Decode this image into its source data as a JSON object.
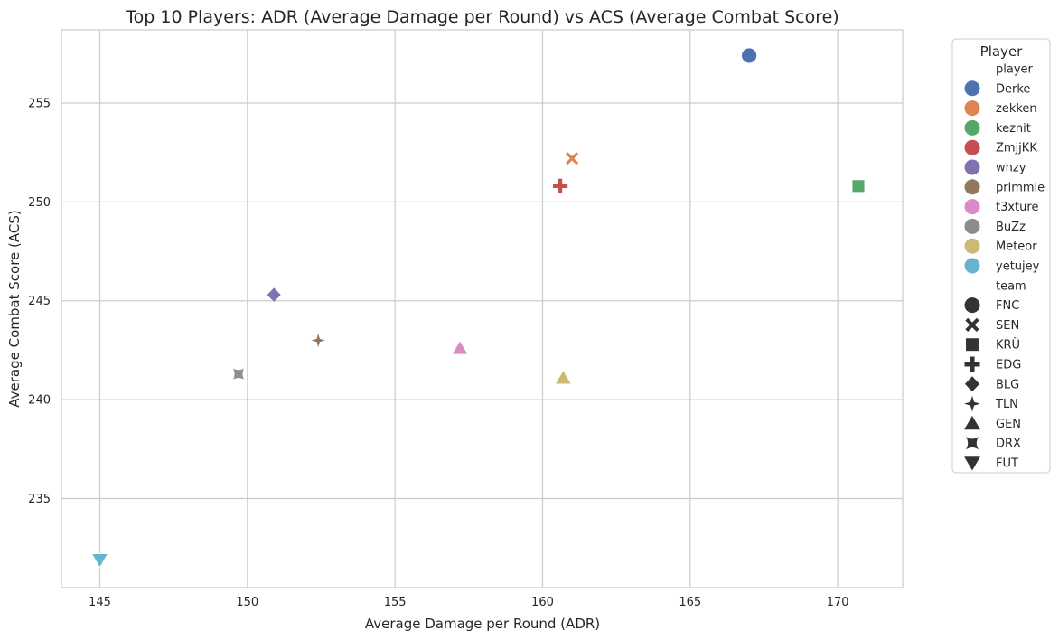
{
  "chart_data": {
    "type": "scatter",
    "title": "Top 10 Players: ADR (Average Damage per Round) vs ACS (Average Combat Score)",
    "xlabel": "Average Damage per Round (ADR)",
    "ylabel": "Average Combat Score (ACS)",
    "xlim": [
      143.7,
      172.2
    ],
    "ylim": [
      230.5,
      258.7
    ],
    "xticks": [
      145,
      150,
      155,
      160,
      165,
      170
    ],
    "yticks": [
      235,
      240,
      245,
      250,
      255
    ],
    "grid": true,
    "legend_position": "outside-right",
    "points": [
      {
        "player": "Derke",
        "team": "FNC",
        "x": 167.0,
        "y": 257.4
      },
      {
        "player": "zekken",
        "team": "SEN",
        "x": 161.0,
        "y": 252.2
      },
      {
        "player": "keznit",
        "team": "KRÜ",
        "x": 170.7,
        "y": 250.8
      },
      {
        "player": "ZmjjKK",
        "team": "EDG",
        "x": 160.6,
        "y": 250.8
      },
      {
        "player": "whzy",
        "team": "BLG",
        "x": 150.9,
        "y": 245.3
      },
      {
        "player": "primmie",
        "team": "TLN",
        "x": 152.4,
        "y": 243.0
      },
      {
        "player": "t3xture",
        "team": "GEN",
        "x": 157.2,
        "y": 242.6
      },
      {
        "player": "BuZz",
        "team": "DRX",
        "x": 149.7,
        "y": 241.3
      },
      {
        "player": "Meteor",
        "team": "GEN",
        "x": 160.7,
        "y": 241.1
      },
      {
        "player": "yetujey",
        "team": "FUT",
        "x": 145.0,
        "y": 231.9
      }
    ],
    "legend": {
      "title": "Player",
      "hue_heading": "player",
      "style_heading": "team",
      "players": [
        {
          "name": "Derke",
          "color": "#4c72b0"
        },
        {
          "name": "zekken",
          "color": "#dd8452"
        },
        {
          "name": "keznit",
          "color": "#55a868"
        },
        {
          "name": "ZmjjKK",
          "color": "#c44e52"
        },
        {
          "name": "whzy",
          "color": "#8172b3"
        },
        {
          "name": "primmie",
          "color": "#937860"
        },
        {
          "name": "t3xture",
          "color": "#da8bc3"
        },
        {
          "name": "BuZz",
          "color": "#8c8c8c"
        },
        {
          "name": "Meteor",
          "color": "#ccb974"
        },
        {
          "name": "yetujey",
          "color": "#64b5cd"
        }
      ],
      "teams": [
        {
          "name": "FNC",
          "marker": "circle"
        },
        {
          "name": "SEN",
          "marker": "x"
        },
        {
          "name": "KRÜ",
          "marker": "square"
        },
        {
          "name": "EDG",
          "marker": "plus"
        },
        {
          "name": "BLG",
          "marker": "diamond"
        },
        {
          "name": "TLN",
          "marker": "star4"
        },
        {
          "name": "GEN",
          "marker": "triangle-up"
        },
        {
          "name": "DRX",
          "marker": "star4-concave"
        },
        {
          "name": "FUT",
          "marker": "triangle-down"
        }
      ]
    }
  }
}
